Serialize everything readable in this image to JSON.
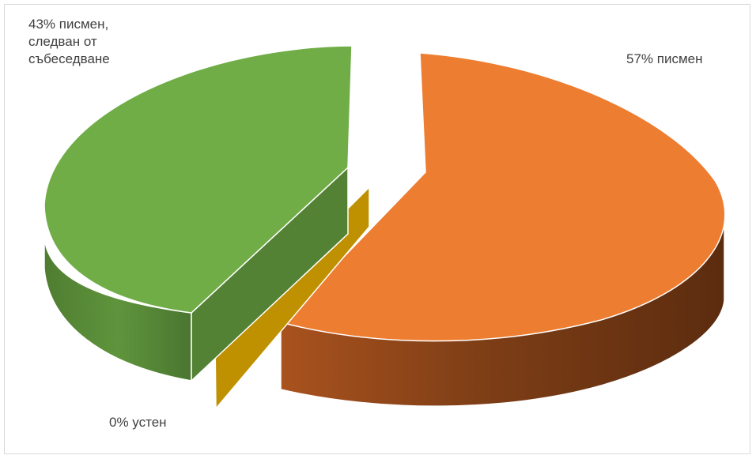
{
  "chart_data": {
    "type": "pie",
    "variant": "3d-exploded",
    "title": "",
    "slices": [
      {
        "label": "57% писмен",
        "value": 57,
        "color": "#ED7D31"
      },
      {
        "label": "43% писмен, следван от събеседване",
        "value": 43,
        "color": "#70AD47"
      },
      {
        "label": "0% устен",
        "value": 0,
        "color": "#BF9000"
      }
    ],
    "legend": "none",
    "data_labels": {
      "written": "57% писмен",
      "written_interview_lines": [
        "43% писмен,",
        "следван от",
        "събеседване"
      ],
      "oral": "0% устен"
    }
  }
}
